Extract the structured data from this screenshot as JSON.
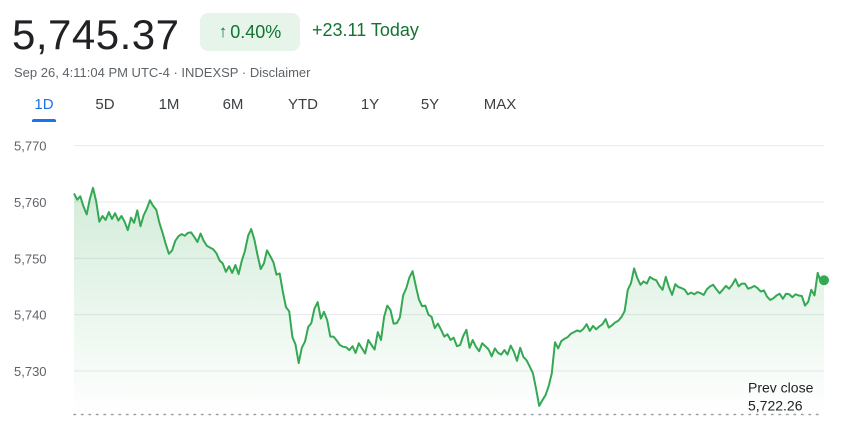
{
  "header": {
    "price": "5,745.37",
    "change_pct": "0.40%",
    "change_abs": "+23.11 Today",
    "arrow_icon": "arrow-up-icon",
    "meta": {
      "timestamp": "Sep 26, 4:11:04 PM UTC-4",
      "separator": " · ",
      "exchange": "INDEXSP",
      "disclaimer": "Disclaimer"
    }
  },
  "tabs": [
    {
      "label": "1D",
      "active": true
    },
    {
      "label": "5D",
      "active": false
    },
    {
      "label": "1M",
      "active": false
    },
    {
      "label": "6M",
      "active": false
    },
    {
      "label": "YTD",
      "active": false
    },
    {
      "label": "1Y",
      "active": false
    },
    {
      "label": "5Y",
      "active": false
    },
    {
      "label": "MAX",
      "active": false
    }
  ],
  "colors": {
    "positive": "#137333",
    "line": "#34a853",
    "active_tab": "#1a73e8",
    "badge_bg": "#e6f4ea"
  },
  "chart_data": {
    "type": "line",
    "y_ticks": [
      "5,770",
      "5,760",
      "5,750",
      "5,740",
      "5,730"
    ],
    "y_tick_values": [
      5770,
      5760,
      5750,
      5740,
      5730
    ],
    "ylim": [
      5722,
      5771
    ],
    "grid": true,
    "prev_close_label": "Prev close",
    "prev_close_value_label": "5,722.26",
    "prev_close": 5722.26,
    "series": [
      {
        "values": [
          5761.5,
          5760.4,
          5761.0,
          5759.2,
          5757.8,
          5760.5,
          5762.5,
          5760.1,
          5756.5,
          5757.5,
          5756.8,
          5758.2,
          5757.0,
          5758.0,
          5756.7,
          5757.5,
          5756.5,
          5755.0,
          5757.2,
          5756.3,
          5758.5,
          5755.7,
          5757.6,
          5758.8,
          5760.3,
          5759.3,
          5758.6,
          5756.3,
          5754.5,
          5752.5,
          5750.8,
          5751.4,
          5753.1,
          5753.9,
          5754.3,
          5754.0,
          5754.5,
          5754.6,
          5753.8,
          5752.9,
          5754.4,
          5753.1,
          5752.2,
          5751.9,
          5751.6,
          5750.9,
          5749.6,
          5749.1,
          5747.6,
          5748.6,
          5747.4,
          5748.8,
          5747.2,
          5749.5,
          5751.3,
          5754.0,
          5755.2,
          5753.3,
          5750.6,
          5748.1,
          5749.1,
          5751.4,
          5750.4,
          5749.3,
          5747.1,
          5747.3,
          5744.0,
          5741.3,
          5740.6,
          5736.0,
          5734.7,
          5731.4,
          5734.1,
          5735.2,
          5737.8,
          5738.5,
          5741.1,
          5742.2,
          5739.3,
          5740.5,
          5739.0,
          5736.1,
          5736.1,
          5735.4,
          5734.6,
          5734.3,
          5734.2,
          5733.7,
          5734.4,
          5733.2,
          5734.9,
          5734.0,
          5733.1,
          5735.5,
          5734.6,
          5733.8,
          5736.9,
          5735.5,
          5739.6,
          5741.6,
          5740.8,
          5738.4,
          5738.5,
          5739.5,
          5743.4,
          5744.7,
          5746.6,
          5747.7,
          5745.1,
          5742.7,
          5741.5,
          5741.6,
          5740.0,
          5739.6,
          5737.6,
          5738.4,
          5737.3,
          5736.1,
          5736.5,
          5735.5,
          5735.9,
          5734.4,
          5734.6,
          5736.2,
          5737.3,
          5734.1,
          5735.5,
          5734.3,
          5733.5,
          5734.9,
          5734.4,
          5733.8,
          5732.6,
          5734.0,
          5733.2,
          5732.9,
          5733.7,
          5732.9,
          5734.5,
          5733.4,
          5731.8,
          5734.1,
          5732.5,
          5731.9,
          5730.8,
          5729.6,
          5726.9,
          5723.8,
          5724.8,
          5725.7,
          5727.3,
          5729.6,
          5735.1,
          5734.0,
          5735.3,
          5735.7,
          5736.0,
          5736.6,
          5736.9,
          5737.2,
          5737.0,
          5737.5,
          5738.3,
          5737.1,
          5738.0,
          5737.4,
          5737.9,
          5738.3,
          5739.2,
          5737.7,
          5738.1,
          5738.6,
          5738.9,
          5739.6,
          5740.6,
          5744.4,
          5745.6,
          5748.2,
          5746.5,
          5745.3,
          5745.9,
          5745.5,
          5746.7,
          5746.3,
          5746.1,
          5745.1,
          5744.4,
          5746.7,
          5744.9,
          5743.5,
          5745.4,
          5744.9,
          5744.7,
          5744.4,
          5743.6,
          5743.9,
          5743.6,
          5744.0,
          5743.8,
          5743.5,
          5744.5,
          5745.0,
          5745.3,
          5744.5,
          5743.8,
          5744.4,
          5745.1,
          5744.6,
          5745.3,
          5746.3,
          5745.0,
          5745.5,
          5745.5,
          5744.6,
          5744.8,
          5745.1,
          5744.7,
          5744.1,
          5744.3,
          5743.2,
          5742.6,
          5742.9,
          5743.4,
          5743.7,
          5742.8,
          5743.7,
          5743.6,
          5743.1,
          5743.6,
          5743.4,
          5743.3,
          5741.6,
          5742.3,
          5744.4,
          5743.4,
          5747.4,
          5745.8,
          5746.1
        ]
      }
    ]
  }
}
